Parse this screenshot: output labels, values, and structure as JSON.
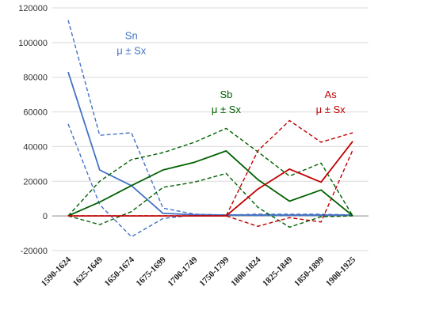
{
  "chart_data": {
    "type": "line",
    "title": "",
    "xlabel": "",
    "ylabel": "",
    "ylim": [
      -20000,
      120000
    ],
    "ytick_step": 20000,
    "y_ticks": [
      "-20000",
      "0",
      "20000",
      "40000",
      "60000",
      "80000",
      "100000",
      "120000"
    ],
    "grid": "horizontal",
    "categories": [
      "1590-1624",
      "1625-1649",
      "1650-1674",
      "1675-1699",
      "1700-1749",
      "1750-1799",
      "1800-1824",
      "1825-1849",
      "1850-1899",
      "1900-1925"
    ],
    "series": [
      {
        "id": "sn_mean",
        "element": "Sn",
        "kind": "mean",
        "style": "solid",
        "color": "#4472C4",
        "values": [
          83000,
          26500,
          17500,
          1500,
          700,
          500,
          500,
          500,
          500,
          500
        ]
      },
      {
        "id": "sn_upper",
        "element": "Sn",
        "kind": "upper",
        "style": "dashed",
        "color": "#4472C4",
        "values": [
          113000,
          46500,
          48000,
          4500,
          1000,
          500,
          1000,
          1000,
          1000,
          500
        ]
      },
      {
        "id": "sn_lower",
        "element": "Sn",
        "kind": "lower",
        "style": "dashed",
        "color": "#4472C4",
        "values": [
          53000,
          6500,
          -12000,
          -1500,
          500,
          500,
          200,
          200,
          200,
          300
        ]
      },
      {
        "id": "sb_mean",
        "element": "Sb",
        "kind": "mean",
        "style": "solid",
        "color": "#006100",
        "values": [
          0,
          8000,
          17500,
          26500,
          31000,
          37500,
          21000,
          8500,
          15000,
          0
        ]
      },
      {
        "id": "sb_upper",
        "element": "Sb",
        "kind": "upper",
        "style": "dashed",
        "color": "#006100",
        "values": [
          0,
          20000,
          32500,
          36500,
          42500,
          50500,
          37000,
          23000,
          30500,
          0
        ]
      },
      {
        "id": "sb_lower",
        "element": "Sb",
        "kind": "lower",
        "style": "dashed",
        "color": "#006100",
        "values": [
          0,
          -5000,
          2500,
          16500,
          19500,
          24500,
          5000,
          -6500,
          -500,
          0
        ]
      },
      {
        "id": "as_mean",
        "element": "As",
        "kind": "mean",
        "style": "solid",
        "color": "#C00000",
        "values": [
          0,
          0,
          0,
          0,
          0,
          0,
          15500,
          27000,
          19500,
          43000
        ]
      },
      {
        "id": "as_upper",
        "element": "As",
        "kind": "upper",
        "style": "dashed",
        "color": "#C00000",
        "values": [
          0,
          0,
          0,
          0,
          0,
          0,
          37500,
          55000,
          42500,
          48000
        ]
      },
      {
        "id": "as_lower",
        "element": "As",
        "kind": "lower",
        "style": "dashed",
        "color": "#C00000",
        "values": [
          0,
          0,
          0,
          0,
          0,
          0,
          -6000,
          -1000,
          -3500,
          38000
        ]
      }
    ],
    "annotations": [
      {
        "id": "sn",
        "name": "Sn",
        "stat": "μ ± Sx",
        "color": "#4472C4",
        "anchor_category": 2,
        "anchor_y": 102000
      },
      {
        "id": "sb",
        "name": "Sb",
        "stat": "μ ± Sx",
        "color": "#006100",
        "anchor_category": 5,
        "anchor_y": 68000
      },
      {
        "id": "as",
        "name": "As",
        "stat": "μ ± Sx",
        "color": "#C00000",
        "anchor_category": 8.3,
        "anchor_y": 68000
      }
    ]
  }
}
